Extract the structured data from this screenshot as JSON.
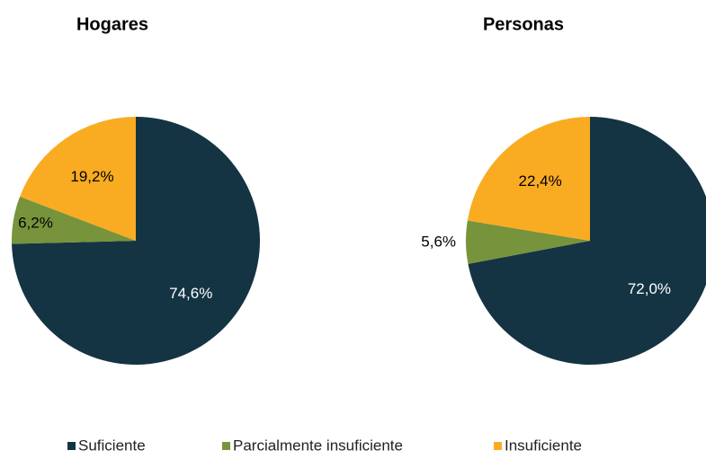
{
  "chart_data": [
    {
      "type": "pie",
      "title": "Hogares",
      "categories": [
        "Suficiente",
        "Parcialmente insuficiente",
        "Insuficiente"
      ],
      "values": [
        74.6,
        6.2,
        19.2
      ],
      "value_labels": [
        "74,6%",
        "6,2%",
        "19,2%"
      ],
      "colors": [
        "#143443",
        "#77933c",
        "#f9ab22"
      ]
    },
    {
      "type": "pie",
      "title": "Personas",
      "categories": [
        "Suficiente",
        "Parcialmente insuficiente",
        "Insuficiente"
      ],
      "values": [
        72.0,
        5.6,
        22.4
      ],
      "value_labels": [
        "72,0%",
        "5,6%",
        "22,4%"
      ],
      "colors": [
        "#143443",
        "#77933c",
        "#f9ab22"
      ]
    }
  ]
}
